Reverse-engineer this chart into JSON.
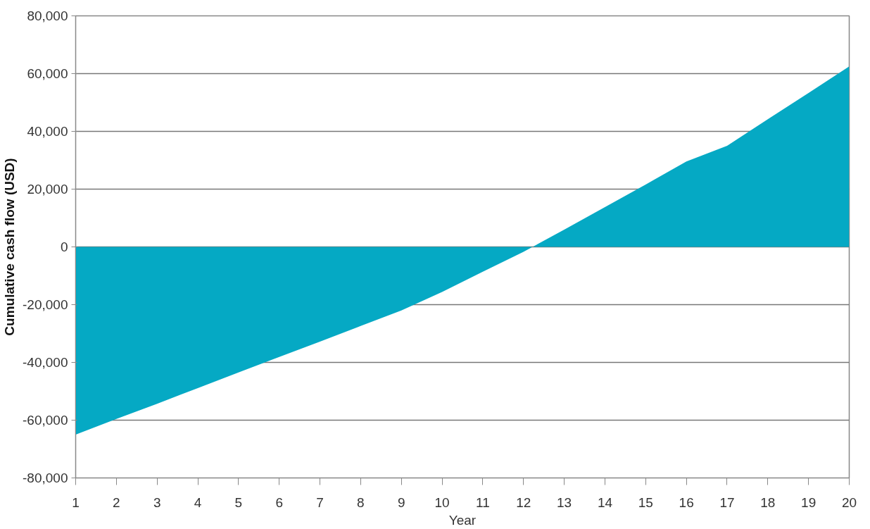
{
  "chart_data": {
    "type": "area",
    "xlabel": "Year",
    "ylabel": "Cumulative cash flow (USD)",
    "x": [
      1,
      2,
      3,
      4,
      5,
      6,
      7,
      8,
      9,
      10,
      11,
      12,
      13,
      14,
      15,
      16,
      17,
      18,
      19,
      20
    ],
    "values": [
      -65000,
      -59600,
      -54300,
      -48900,
      -43500,
      -38100,
      -32800,
      -27400,
      -22000,
      -15600,
      -8600,
      -1700,
      6000,
      13800,
      21600,
      29600,
      35000,
      44200,
      53300,
      62500
    ],
    "color": "#05a9c4",
    "xlim": [
      1,
      20
    ],
    "xticks": [
      1,
      2,
      3,
      4,
      5,
      6,
      7,
      8,
      9,
      10,
      11,
      12,
      13,
      14,
      15,
      16,
      17,
      18,
      19,
      20
    ],
    "ylim": [
      -80000,
      80000
    ],
    "yticks": [
      {
        "value": -80000,
        "label": "-80,000"
      },
      {
        "value": -60000,
        "label": "-60,000"
      },
      {
        "value": -40000,
        "label": "-40,000"
      },
      {
        "value": -20000,
        "label": "-20,000"
      },
      0,
      {
        "value": 20000,
        "label": "20,000"
      },
      {
        "value": 40000,
        "label": "40,000"
      },
      {
        "value": 60000,
        "label": "60,000"
      },
      {
        "value": 80000,
        "label": "80,000"
      }
    ],
    "grid": "y"
  }
}
